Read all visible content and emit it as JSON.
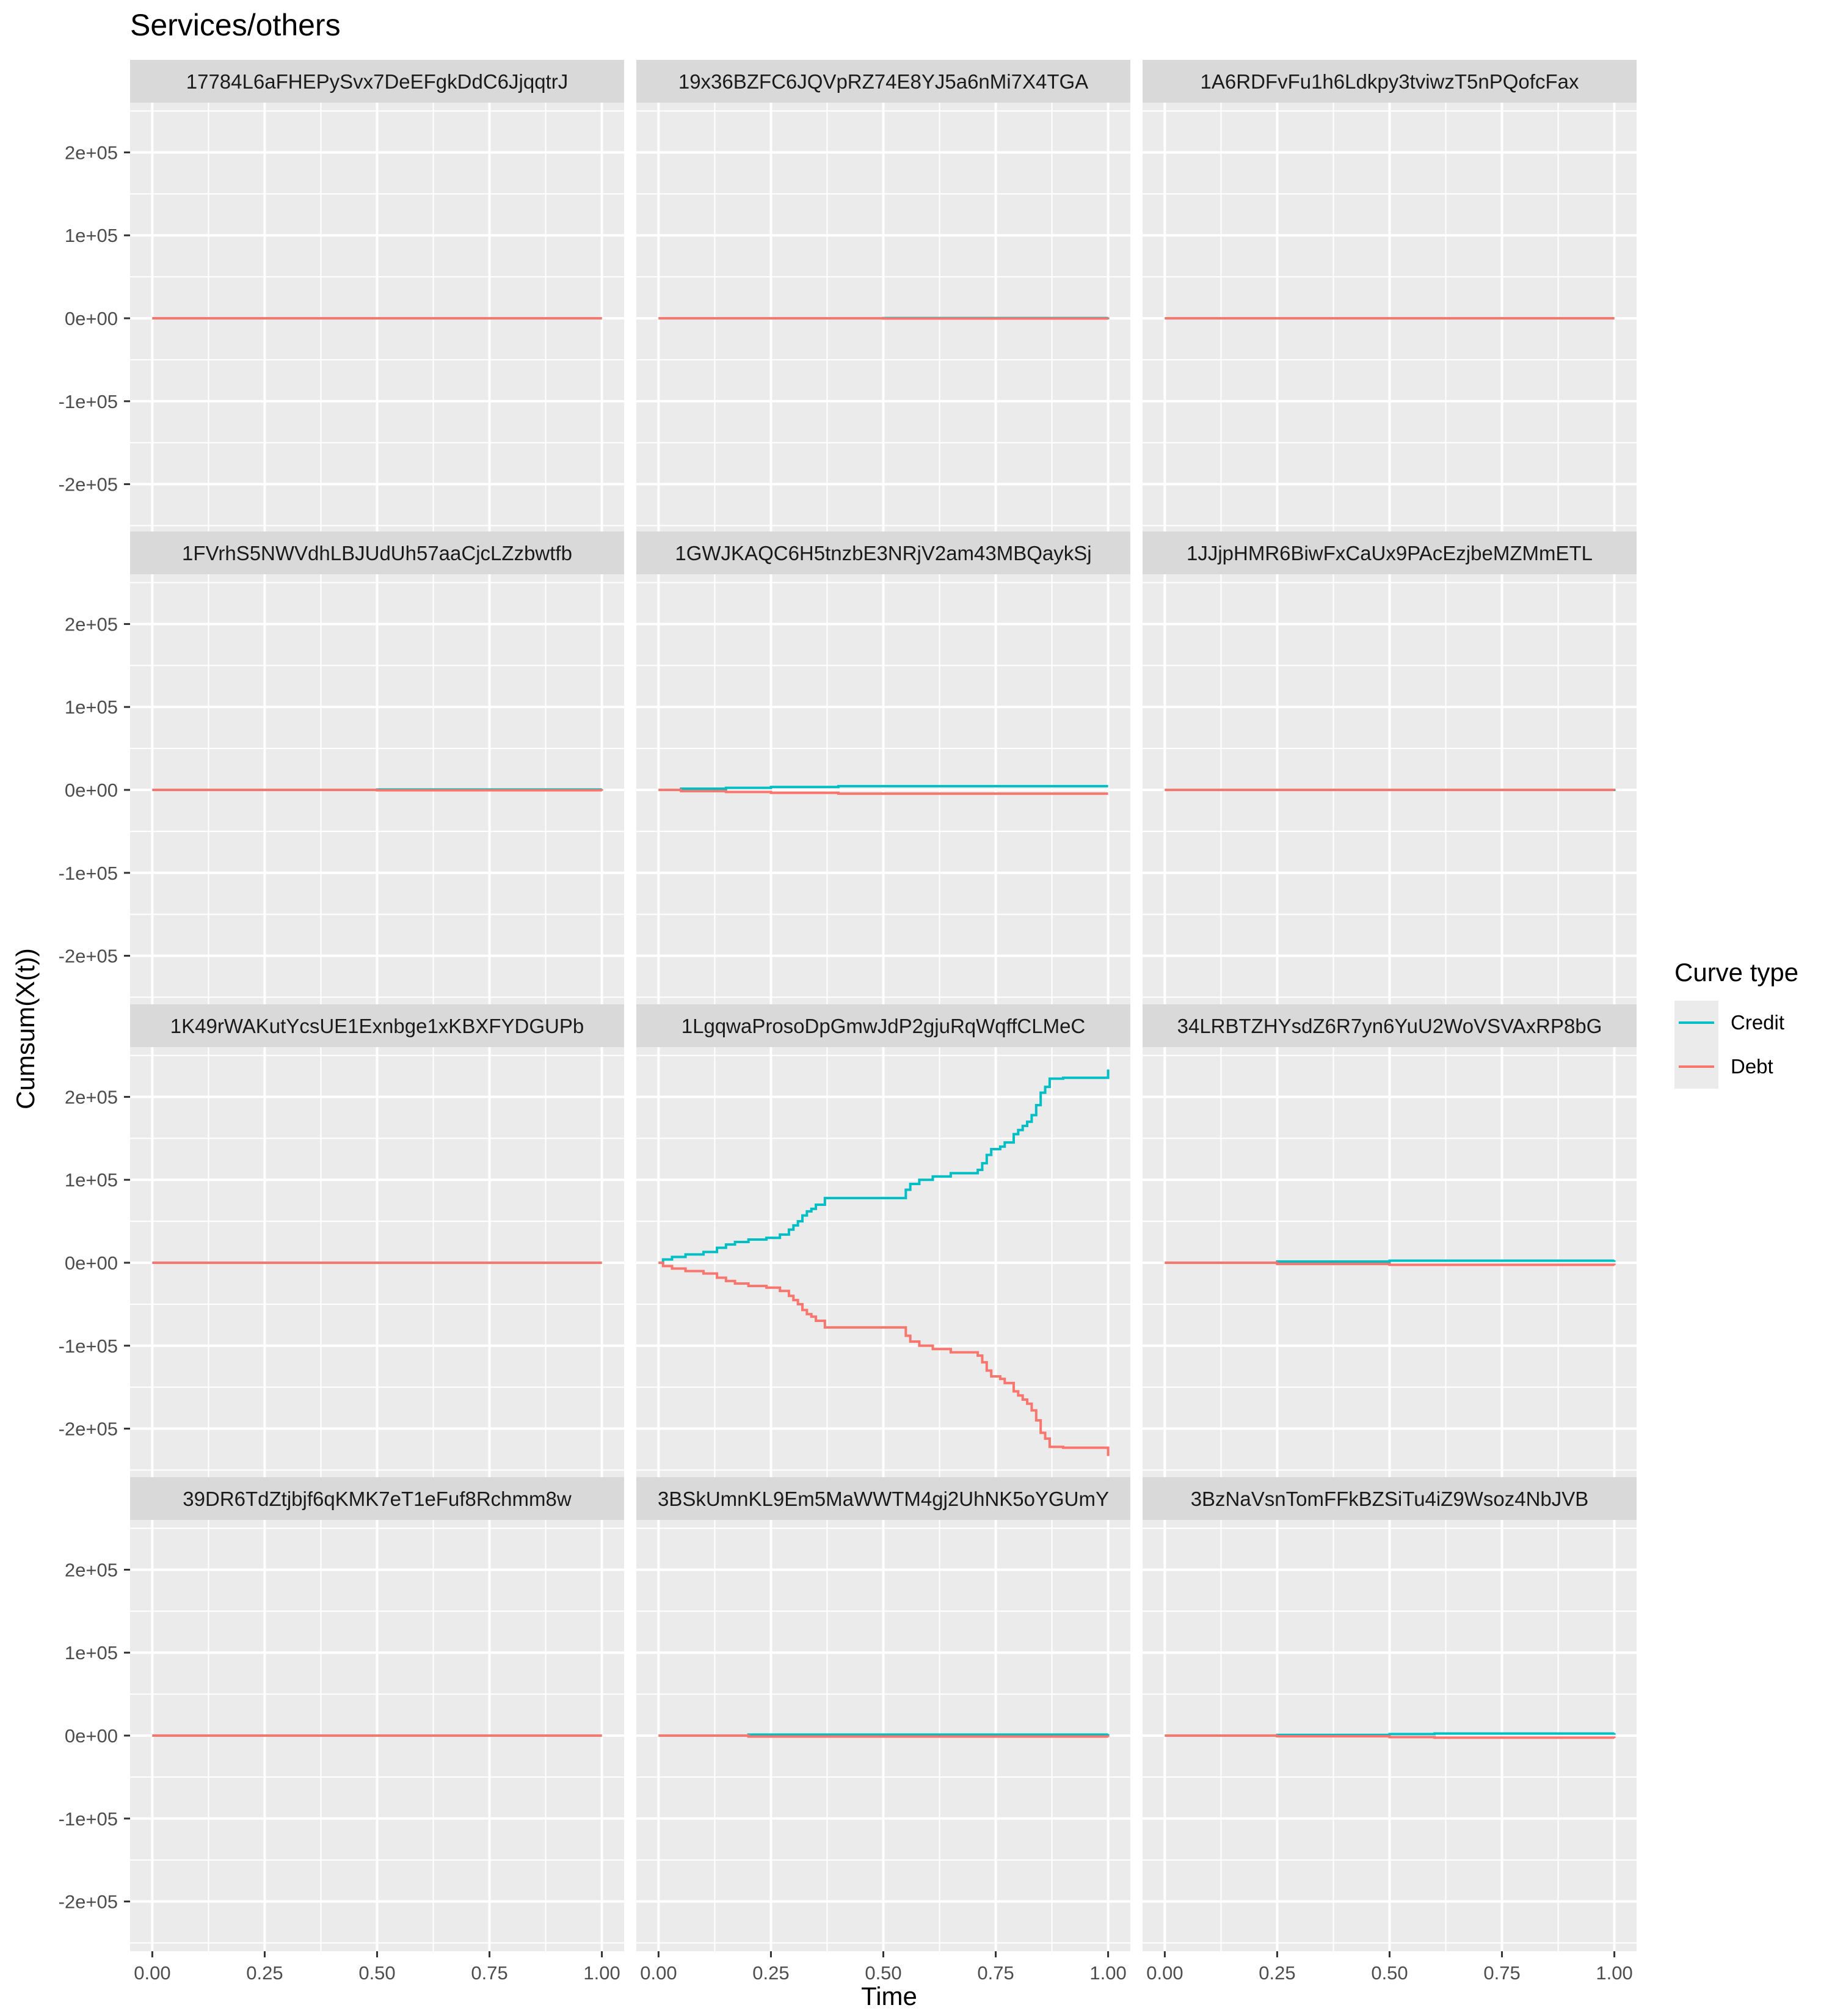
{
  "chart_data": {
    "type": "line",
    "title": "Services/others",
    "xlabel": "Time",
    "ylabel": "Cumsum(X(t))",
    "xlim": [
      0,
      1
    ],
    "ylim": [
      -260000,
      260000
    ],
    "x_ticks": [
      0,
      0.25,
      0.5,
      0.75,
      1
    ],
    "x_tick_labels": [
      "0.00",
      "0.25",
      "0.50",
      "0.75",
      "1.00"
    ],
    "y_ticks": [
      -200000,
      -100000,
      0,
      100000,
      200000
    ],
    "y_tick_labels": [
      "-2e+05",
      "-1e+05",
      "0e+00",
      "1e+05",
      "2e+05"
    ],
    "grid": true,
    "legend": {
      "title": "Curve type",
      "placement": "right",
      "entries": [
        {
          "name": "Credit",
          "color": "#00BFC4"
        },
        {
          "name": "Debt",
          "color": "#F8766D"
        }
      ]
    },
    "panels": [
      {
        "label": "17784L6aFHEPySvx7DeEFgkDdC6JjqqtrJ",
        "series": [
          {
            "name": "Credit",
            "x": [
              0,
              1
            ],
            "y": [
              0,
              0
            ]
          },
          {
            "name": "Debt",
            "x": [
              0,
              1
            ],
            "y": [
              0,
              0
            ]
          }
        ]
      },
      {
        "label": "19x36BZFC6JQVpRZ74E8YJ5a6nMi7X4TGA",
        "series": [
          {
            "name": "Credit",
            "x": [
              0,
              0.5,
              1
            ],
            "y": [
              0,
              300,
              500
            ]
          },
          {
            "name": "Debt",
            "x": [
              0,
              0.5,
              1
            ],
            "y": [
              0,
              -300,
              -500
            ]
          }
        ]
      },
      {
        "label": "1A6RDFvFu1h6Ldkpy3tviwzT5nPQofcFax",
        "series": [
          {
            "name": "Credit",
            "x": [
              0,
              1
            ],
            "y": [
              0,
              0
            ]
          },
          {
            "name": "Debt",
            "x": [
              0,
              1
            ],
            "y": [
              0,
              0
            ]
          }
        ]
      },
      {
        "label": "1FVrhS5NWVdhLBJUdUh57aaCjcLZzbwtfb",
        "series": [
          {
            "name": "Credit",
            "x": [
              0,
              0.5,
              1
            ],
            "y": [
              0,
              500,
              1000
            ]
          },
          {
            "name": "Debt",
            "x": [
              0,
              0.5,
              1
            ],
            "y": [
              0,
              -500,
              -1000
            ]
          }
        ]
      },
      {
        "label": "1GWJKAQC6H5tnzbE3NRjV2am43MBQaykSj",
        "series": [
          {
            "name": "Credit",
            "x": [
              0,
              0.05,
              0.15,
              0.25,
              0.4,
              1
            ],
            "y": [
              0,
              1500,
              2500,
              3500,
              4500,
              4500
            ]
          },
          {
            "name": "Debt",
            "x": [
              0,
              0.05,
              0.15,
              0.25,
              0.4,
              1
            ],
            "y": [
              0,
              -1500,
              -2500,
              -3500,
              -4500,
              -4500
            ]
          }
        ]
      },
      {
        "label": "1JJjpHMR6BiwFxCaUx9PAcEzjbeMZMmETL",
        "series": [
          {
            "name": "Credit",
            "x": [
              0,
              1
            ],
            "y": [
              0,
              300
            ]
          },
          {
            "name": "Debt",
            "x": [
              0,
              1
            ],
            "y": [
              0,
              -300
            ]
          }
        ]
      },
      {
        "label": "1K49rWAKutYcsUE1Exnbge1xKBXFYDGUPb",
        "series": [
          {
            "name": "Credit",
            "x": [
              0,
              1
            ],
            "y": [
              0,
              0
            ]
          },
          {
            "name": "Debt",
            "x": [
              0,
              1
            ],
            "y": [
              0,
              0
            ]
          }
        ]
      },
      {
        "label": "1LgqwaProsoDpGmwJdP2gjuRqWqffCLMeC",
        "series": [
          {
            "name": "Credit",
            "x": [
              0,
              0.01,
              0.03,
              0.06,
              0.1,
              0.13,
              0.15,
              0.17,
              0.2,
              0.24,
              0.27,
              0.29,
              0.3,
              0.31,
              0.32,
              0.33,
              0.34,
              0.35,
              0.37,
              0.45,
              0.54,
              0.55,
              0.56,
              0.58,
              0.61,
              0.65,
              0.71,
              0.72,
              0.73,
              0.74,
              0.76,
              0.77,
              0.79,
              0.8,
              0.81,
              0.82,
              0.83,
              0.84,
              0.85,
              0.86,
              0.87,
              0.9,
              0.99,
              1.0
            ],
            "y": [
              0,
              4000,
              7000,
              10000,
              13000,
              18000,
              22000,
              25000,
              28000,
              30000,
              34000,
              40000,
              45000,
              50000,
              57000,
              62000,
              65000,
              70000,
              78000,
              78000,
              78000,
              88000,
              95000,
              100000,
              104000,
              108000,
              112000,
              120000,
              130000,
              137000,
              140000,
              145000,
              155000,
              160000,
              165000,
              170000,
              178000,
              190000,
              205000,
              212000,
              222000,
              223000,
              223000,
              233000
            ]
          },
          {
            "name": "Debt",
            "x": [
              0,
              0.01,
              0.03,
              0.06,
              0.1,
              0.13,
              0.15,
              0.17,
              0.2,
              0.24,
              0.27,
              0.29,
              0.3,
              0.31,
              0.32,
              0.33,
              0.34,
              0.35,
              0.37,
              0.45,
              0.54,
              0.55,
              0.56,
              0.58,
              0.61,
              0.65,
              0.71,
              0.72,
              0.73,
              0.74,
              0.76,
              0.77,
              0.79,
              0.8,
              0.81,
              0.82,
              0.83,
              0.84,
              0.85,
              0.86,
              0.87,
              0.9,
              0.99,
              1.0
            ],
            "y": [
              0,
              -4000,
              -7000,
              -10000,
              -13000,
              -18000,
              -22000,
              -25000,
              -28000,
              -30000,
              -34000,
              -40000,
              -45000,
              -50000,
              -57000,
              -62000,
              -65000,
              -70000,
              -78000,
              -78000,
              -78000,
              -88000,
              -95000,
              -100000,
              -104000,
              -108000,
              -112000,
              -120000,
              -130000,
              -137000,
              -140000,
              -145000,
              -155000,
              -160000,
              -165000,
              -170000,
              -178000,
              -190000,
              -205000,
              -212000,
              -222000,
              -223000,
              -223000,
              -233000
            ]
          }
        ]
      },
      {
        "label": "34LRBTZHYsdZ6R7yn6YuU2WoVSVAxRP8bG",
        "series": [
          {
            "name": "Credit",
            "x": [
              0,
              0.25,
              0.5,
              1
            ],
            "y": [
              0,
              1500,
              2500,
              3000
            ]
          },
          {
            "name": "Debt",
            "x": [
              0,
              0.25,
              0.5,
              1
            ],
            "y": [
              0,
              -1500,
              -2500,
              -3000
            ]
          }
        ]
      },
      {
        "label": "39DR6TdZtjbjf6qKMK7eT1eFuf8Rchmm8w",
        "series": [
          {
            "name": "Credit",
            "x": [
              0,
              1
            ],
            "y": [
              0,
              0
            ]
          },
          {
            "name": "Debt",
            "x": [
              0,
              1
            ],
            "y": [
              0,
              0
            ]
          }
        ]
      },
      {
        "label": "3BSkUmnKL9Em5MaWWTM4gj2UhNK5oYGUmY",
        "series": [
          {
            "name": "Credit",
            "x": [
              0,
              0.2,
              1
            ],
            "y": [
              0,
              1200,
              1800
            ]
          },
          {
            "name": "Debt",
            "x": [
              0,
              0.2,
              1
            ],
            "y": [
              0,
              -1200,
              -1800
            ]
          }
        ]
      },
      {
        "label": "3BzNaVsnTomFFkBZSiTu4iZ9Wsoz4NbJVB",
        "series": [
          {
            "name": "Credit",
            "x": [
              0,
              0.25,
              0.5,
              0.6,
              1
            ],
            "y": [
              0,
              800,
              1800,
              2500,
              3000
            ]
          },
          {
            "name": "Debt",
            "x": [
              0,
              0.25,
              0.5,
              0.6,
              1
            ],
            "y": [
              0,
              -800,
              -1800,
              -2500,
              -3000
            ]
          }
        ]
      }
    ]
  }
}
